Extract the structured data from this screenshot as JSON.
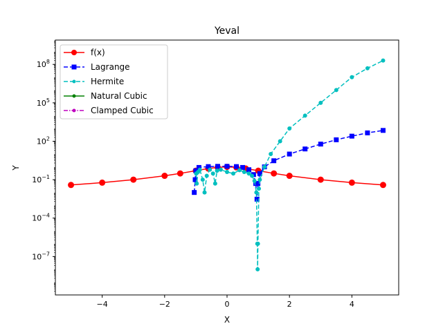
{
  "chart_data": {
    "type": "line",
    "title": "Yeval",
    "xlabel": "X",
    "ylabel": "Y",
    "xlim": [
      -5.5,
      5.5
    ],
    "ylim_log10": [
      -10,
      9.9
    ],
    "yscale": "log",
    "grid": false,
    "legend_position": "top-left",
    "x_ticks": [
      {
        "value": -4,
        "label": "−4"
      },
      {
        "value": -2,
        "label": "−2"
      },
      {
        "value": 0,
        "label": "0"
      },
      {
        "value": 2,
        "label": "2"
      },
      {
        "value": 4,
        "label": "4"
      }
    ],
    "y_ticks": [
      {
        "exp": -7,
        "base": "10",
        "sup": "−7"
      },
      {
        "exp": -4,
        "base": "10",
        "sup": "−4"
      },
      {
        "exp": -1,
        "base": "10",
        "sup": "−1"
      },
      {
        "exp": 2,
        "base": "10",
        "sup": "2"
      },
      {
        "exp": 5,
        "base": "10",
        "sup": "5"
      },
      {
        "exp": 8,
        "base": "10",
        "sup": "8"
      }
    ],
    "series": [
      {
        "name": "f(x)",
        "color": "#ff0000",
        "dash": "solid",
        "marker": "circle",
        "points": [
          [
            -5,
            0.0385
          ],
          [
            -4,
            0.0588
          ],
          [
            -3,
            0.1
          ],
          [
            -2,
            0.2
          ],
          [
            -1.5,
            0.3077
          ],
          [
            -1,
            0.5
          ],
          [
            -0.6,
            0.7353
          ],
          [
            -0.3,
            0.9174
          ],
          [
            0,
            1
          ],
          [
            0.3,
            0.9174
          ],
          [
            0.6,
            0.7353
          ],
          [
            1,
            0.5
          ],
          [
            1.5,
            0.3077
          ],
          [
            2,
            0.2
          ],
          [
            3,
            0.1
          ],
          [
            4,
            0.0588
          ],
          [
            5,
            0.0385
          ]
        ]
      },
      {
        "name": "Lagrange",
        "color": "#0000ff",
        "dash": "dashed",
        "marker": "square",
        "points": [
          [
            -1.05,
            0.01
          ],
          [
            -1.02,
            0.1
          ],
          [
            -1,
            0.5
          ],
          [
            -0.9,
            0.9
          ],
          [
            -0.6,
            1.05
          ],
          [
            -0.3,
            1.1
          ],
          [
            0,
            1.1
          ],
          [
            0.3,
            1.05
          ],
          [
            0.5,
            0.9
          ],
          [
            0.7,
            0.6
          ],
          [
            0.85,
            0.25
          ],
          [
            0.92,
            0.05
          ],
          [
            0.96,
            0.003
          ],
          [
            0.99,
            0.05
          ],
          [
            1.05,
            0.3
          ],
          [
            1.2,
            1.0
          ],
          [
            1.5,
            3.0
          ],
          [
            2,
            10
          ],
          [
            2.5,
            25
          ],
          [
            3,
            60
          ],
          [
            3.5,
            130
          ],
          [
            4,
            250
          ],
          [
            4.5,
            450
          ],
          [
            5,
            700
          ]
        ]
      },
      {
        "name": "Hermite",
        "color": "#00bfbf",
        "dash": "dashed",
        "marker": "dot",
        "points": [
          [
            -0.99,
            0.3
          ],
          [
            -0.97,
            0.05
          ],
          [
            -0.93,
            0.4
          ],
          [
            -0.87,
            0.6
          ],
          [
            -0.78,
            0.1
          ],
          [
            -0.72,
            0.01
          ],
          [
            -0.65,
            0.2
          ],
          [
            -0.55,
            0.6
          ],
          [
            -0.45,
            0.3
          ],
          [
            -0.38,
            0.05
          ],
          [
            -0.32,
            0.5
          ],
          [
            -0.2,
            0.6
          ],
          [
            0,
            0.4
          ],
          [
            0.2,
            0.3
          ],
          [
            0.4,
            0.55
          ],
          [
            0.55,
            0.4
          ],
          [
            0.7,
            0.3
          ],
          [
            0.8,
            0.2
          ],
          [
            0.88,
            0.08
          ],
          [
            0.94,
            0.01
          ],
          [
            0.97,
            1e-06
          ],
          [
            0.98,
            1e-08
          ],
          [
            0.99,
            1e-06
          ],
          [
            1.02,
            0.02
          ],
          [
            1.05,
            0.1
          ],
          [
            1.2,
            1.0
          ],
          [
            1.4,
            10
          ],
          [
            1.7,
            100
          ],
          [
            2,
            1000
          ],
          [
            2.5,
            10000
          ],
          [
            3,
            100000
          ],
          [
            3.5,
            1000000
          ],
          [
            4,
            10000000
          ],
          [
            4.5,
            50000000
          ],
          [
            5,
            200000000
          ]
        ]
      },
      {
        "name": "Natural Cubic",
        "color": "#008000",
        "dash": "solid",
        "marker": "dot",
        "points": []
      },
      {
        "name": "Clamped Cubic",
        "color": "#bf00bf",
        "dash": "dashdot",
        "marker": "dot",
        "points": []
      }
    ]
  }
}
